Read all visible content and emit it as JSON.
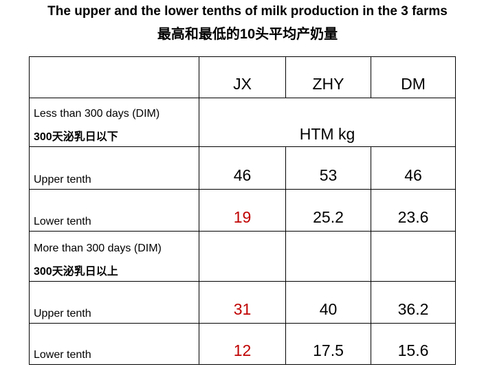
{
  "title": {
    "line1": "The upper and the lower tenths of milk production in the 3 farms",
    "line2": "最高和最低的10头平均产奶量"
  },
  "table": {
    "columns": [
      "JX",
      "ZHY",
      "DM"
    ],
    "unit": "HTM kg",
    "sections": [
      {
        "label_en": "Less than 300 days (DIM)",
        "label_cn": "300天泌乳日以下",
        "rows": [
          {
            "label": "Upper tenth",
            "values": [
              "46",
              "53",
              "46"
            ]
          },
          {
            "label": "Lower tenth",
            "values": [
              "19",
              "25.2",
              "23.6"
            ]
          }
        ]
      },
      {
        "label_en": "More than 300 days (DIM)",
        "label_cn": "300天泌乳日以上",
        "rows": [
          {
            "label": "Upper tenth",
            "values": [
              "31",
              "40",
              "36.2"
            ]
          },
          {
            "label": "Lower tenth",
            "values": [
              "12",
              "17.5",
              "15.6"
            ]
          }
        ]
      }
    ],
    "colors": {
      "jx_values": "#c00000",
      "text": "#000000"
    }
  }
}
